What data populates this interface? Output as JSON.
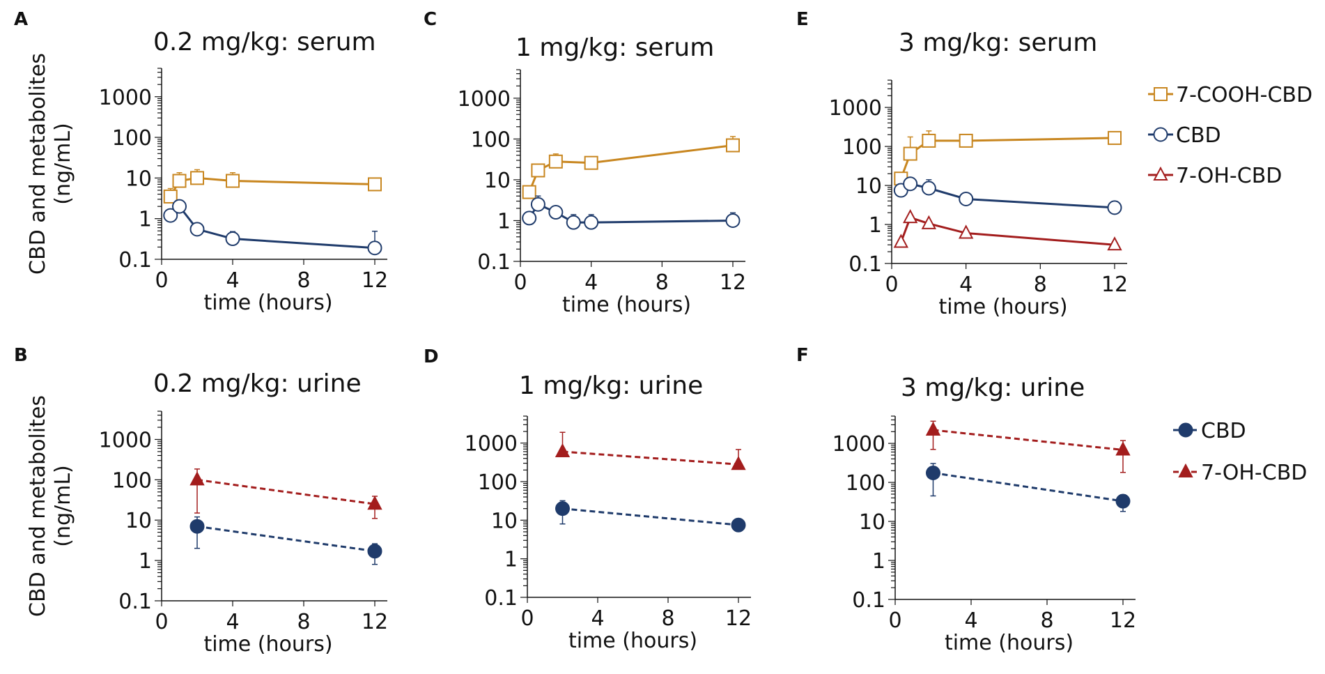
{
  "colors": {
    "cooh": "#C8861F",
    "cbd": "#1F3B6B",
    "oh": "#A31D1D",
    "axis": "#111111"
  },
  "chart_data": [
    {
      "type": "line",
      "panel": "A",
      "title": "0.2 mg/kg: serum",
      "xlabel": "time (hours)",
      "ylabel": "CBD and metabolites (ng/mL)",
      "ylabel_lines": [
        "CBD and metabolites",
        "(ng/mL)"
      ],
      "xticks": [
        "0",
        "4",
        "8",
        "12"
      ],
      "yticks": [
        "0.1",
        "1",
        "10",
        "100",
        "1000"
      ],
      "xlim": [
        0,
        12
      ],
      "ylim": [
        0.1,
        5000
      ],
      "yscale": "log",
      "series": [
        {
          "name": "7-COOH-CBD",
          "color_key": "cooh",
          "marker": "square",
          "filled": false,
          "dashed": false,
          "x": [
            0.5,
            1,
            2,
            4,
            12
          ],
          "y": [
            3.5,
            8.5,
            10,
            8.5,
            7
          ],
          "err": [
            2,
            5,
            6,
            5,
            0
          ]
        },
        {
          "name": "CBD",
          "color_key": "cbd",
          "marker": "circle",
          "filled": false,
          "dashed": false,
          "x": [
            0.5,
            1,
            2,
            4,
            12
          ],
          "y": [
            1.2,
            2,
            0.55,
            0.32,
            0.19
          ],
          "err": [
            0.2,
            0.6,
            0.1,
            0.16,
            0.3
          ]
        }
      ]
    },
    {
      "type": "line",
      "panel": "C",
      "title": "1 mg/kg: serum",
      "xlabel": "time (hours)",
      "xticks": [
        "0",
        "4",
        "8",
        "12"
      ],
      "yticks": [
        "0.1",
        "1",
        "10",
        "100",
        "1000"
      ],
      "xlim": [
        0,
        12
      ],
      "ylim": [
        0.1,
        5000
      ],
      "yscale": "log",
      "series": [
        {
          "name": "7-COOH-CBD",
          "color_key": "cooh",
          "marker": "square",
          "filled": false,
          "dashed": false,
          "x": [
            0.5,
            1,
            2,
            4,
            12
          ],
          "y": [
            5,
            17,
            28,
            26,
            70
          ],
          "err": [
            2,
            5,
            15,
            8,
            45
          ]
        },
        {
          "name": "CBD",
          "color_key": "cbd",
          "marker": "circle",
          "filled": false,
          "dashed": false,
          "x": [
            0.5,
            1,
            2,
            3,
            4,
            12
          ],
          "y": [
            1.15,
            2.5,
            1.6,
            0.9,
            0.9,
            1
          ],
          "err": [
            0.35,
            1.5,
            0.6,
            0.5,
            0.5,
            0.55
          ]
        }
      ]
    },
    {
      "type": "line",
      "panel": "E",
      "title": "3 mg/kg: serum",
      "xlabel": "time (hours)",
      "xticks": [
        "0",
        "4",
        "8",
        "12"
      ],
      "yticks": [
        "0.1",
        "1",
        "10",
        "100",
        "1000"
      ],
      "xlim": [
        0,
        12
      ],
      "ylim": [
        0.1,
        5000
      ],
      "yscale": "log",
      "series": [
        {
          "name": "7-COOH-CBD",
          "color_key": "cooh",
          "marker": "square",
          "filled": false,
          "dashed": false,
          "x": [
            0.5,
            1,
            2,
            4,
            12
          ],
          "y": [
            15,
            65,
            140,
            140,
            165
          ],
          "err": [
            5,
            110,
            110,
            0,
            0
          ]
        },
        {
          "name": "CBD",
          "color_key": "cbd",
          "marker": "circle",
          "filled": false,
          "dashed": false,
          "x": [
            0.5,
            1,
            2,
            4,
            12
          ],
          "y": [
            7.5,
            11,
            8.5,
            4.5,
            2.7
          ],
          "err": [
            3.5,
            0,
            5.5,
            0,
            0
          ]
        },
        {
          "name": "7-OH-CBD",
          "color_key": "oh",
          "marker": "triangle",
          "filled": false,
          "dashed": false,
          "x": [
            0.5,
            1,
            2,
            4,
            12
          ],
          "y": [
            0.35,
            1.5,
            1.05,
            0.6,
            0.3
          ],
          "err": [
            0,
            0,
            0,
            0,
            0
          ]
        }
      ]
    },
    {
      "type": "line",
      "panel": "B",
      "title": "0.2 mg/kg: urine",
      "xlabel": "time (hours)",
      "ylabel": "CBD and metabolites (ng/mL)",
      "ylabel_lines": [
        "CBD and metabolites",
        "(ng/mL)"
      ],
      "xticks": [
        "0",
        "4",
        "8",
        "12"
      ],
      "yticks": [
        "0.1",
        "1",
        "10",
        "100",
        "1000"
      ],
      "xlim": [
        0,
        12
      ],
      "ylim": [
        0.1,
        5000
      ],
      "yscale": "log",
      "series": [
        {
          "name": "7-OH-CBD",
          "color_key": "oh",
          "marker": "triangle",
          "filled": true,
          "dashed": true,
          "x": [
            2,
            12
          ],
          "y": [
            100,
            25
          ],
          "err": [
            85,
            14
          ],
          "err_down": true
        },
        {
          "name": "CBD",
          "color_key": "cbd",
          "marker": "circle",
          "filled": true,
          "dashed": true,
          "x": [
            2,
            12
          ],
          "y": [
            7,
            1.7
          ],
          "err": [
            5,
            0.9
          ],
          "err_down": true
        }
      ]
    },
    {
      "type": "line",
      "panel": "D",
      "title": "1 mg/kg: urine",
      "xlabel": "time (hours)",
      "xticks": [
        "0",
        "4",
        "8",
        "12"
      ],
      "yticks": [
        "0.1",
        "1",
        "10",
        "100",
        "1000"
      ],
      "xlim": [
        0,
        12
      ],
      "ylim": [
        0.1,
        5000
      ],
      "yscale": "log",
      "series": [
        {
          "name": "7-OH-CBD",
          "color_key": "oh",
          "marker": "triangle",
          "filled": true,
          "dashed": true,
          "x": [
            2,
            12
          ],
          "y": [
            600,
            280
          ],
          "err": [
            1300,
            400
          ]
        },
        {
          "name": "CBD",
          "color_key": "cbd",
          "marker": "circle",
          "filled": true,
          "dashed": true,
          "x": [
            2,
            12
          ],
          "y": [
            20,
            7.5
          ],
          "err": [
            12,
            0
          ],
          "err_down": true
        }
      ]
    },
    {
      "type": "line",
      "panel": "F",
      "title": "3 mg/kg: urine",
      "xlabel": "time (hours)",
      "xticks": [
        "0",
        "4",
        "8",
        "12"
      ],
      "yticks": [
        "0.1",
        "1",
        "10",
        "100",
        "1000"
      ],
      "xlim": [
        0,
        12
      ],
      "ylim": [
        0.1,
        5000
      ],
      "yscale": "log",
      "series": [
        {
          "name": "7-OH-CBD",
          "color_key": "oh",
          "marker": "triangle",
          "filled": true,
          "dashed": true,
          "x": [
            2,
            12
          ],
          "y": [
            2200,
            680
          ],
          "err": [
            1500,
            500
          ],
          "err_down": true
        },
        {
          "name": "CBD",
          "color_key": "cbd",
          "marker": "circle",
          "filled": true,
          "dashed": true,
          "x": [
            2,
            12
          ],
          "y": [
            175,
            33
          ],
          "err": [
            130,
            15
          ],
          "err_down": true
        }
      ]
    }
  ],
  "legends": {
    "serum": [
      {
        "label": "7-COOH-CBD",
        "color_key": "cooh",
        "marker": "square",
        "filled": false,
        "dashed": false
      },
      {
        "label": "CBD",
        "color_key": "cbd",
        "marker": "circle",
        "filled": false,
        "dashed": false
      },
      {
        "label": "7-OH-CBD",
        "color_key": "oh",
        "marker": "triangle",
        "filled": false,
        "dashed": false
      }
    ],
    "urine": [
      {
        "label": "CBD",
        "color_key": "cbd",
        "marker": "circle",
        "filled": true,
        "dashed": true
      },
      {
        "label": "7-OH-CBD",
        "color_key": "oh",
        "marker": "triangle",
        "filled": true,
        "dashed": true
      }
    ]
  }
}
